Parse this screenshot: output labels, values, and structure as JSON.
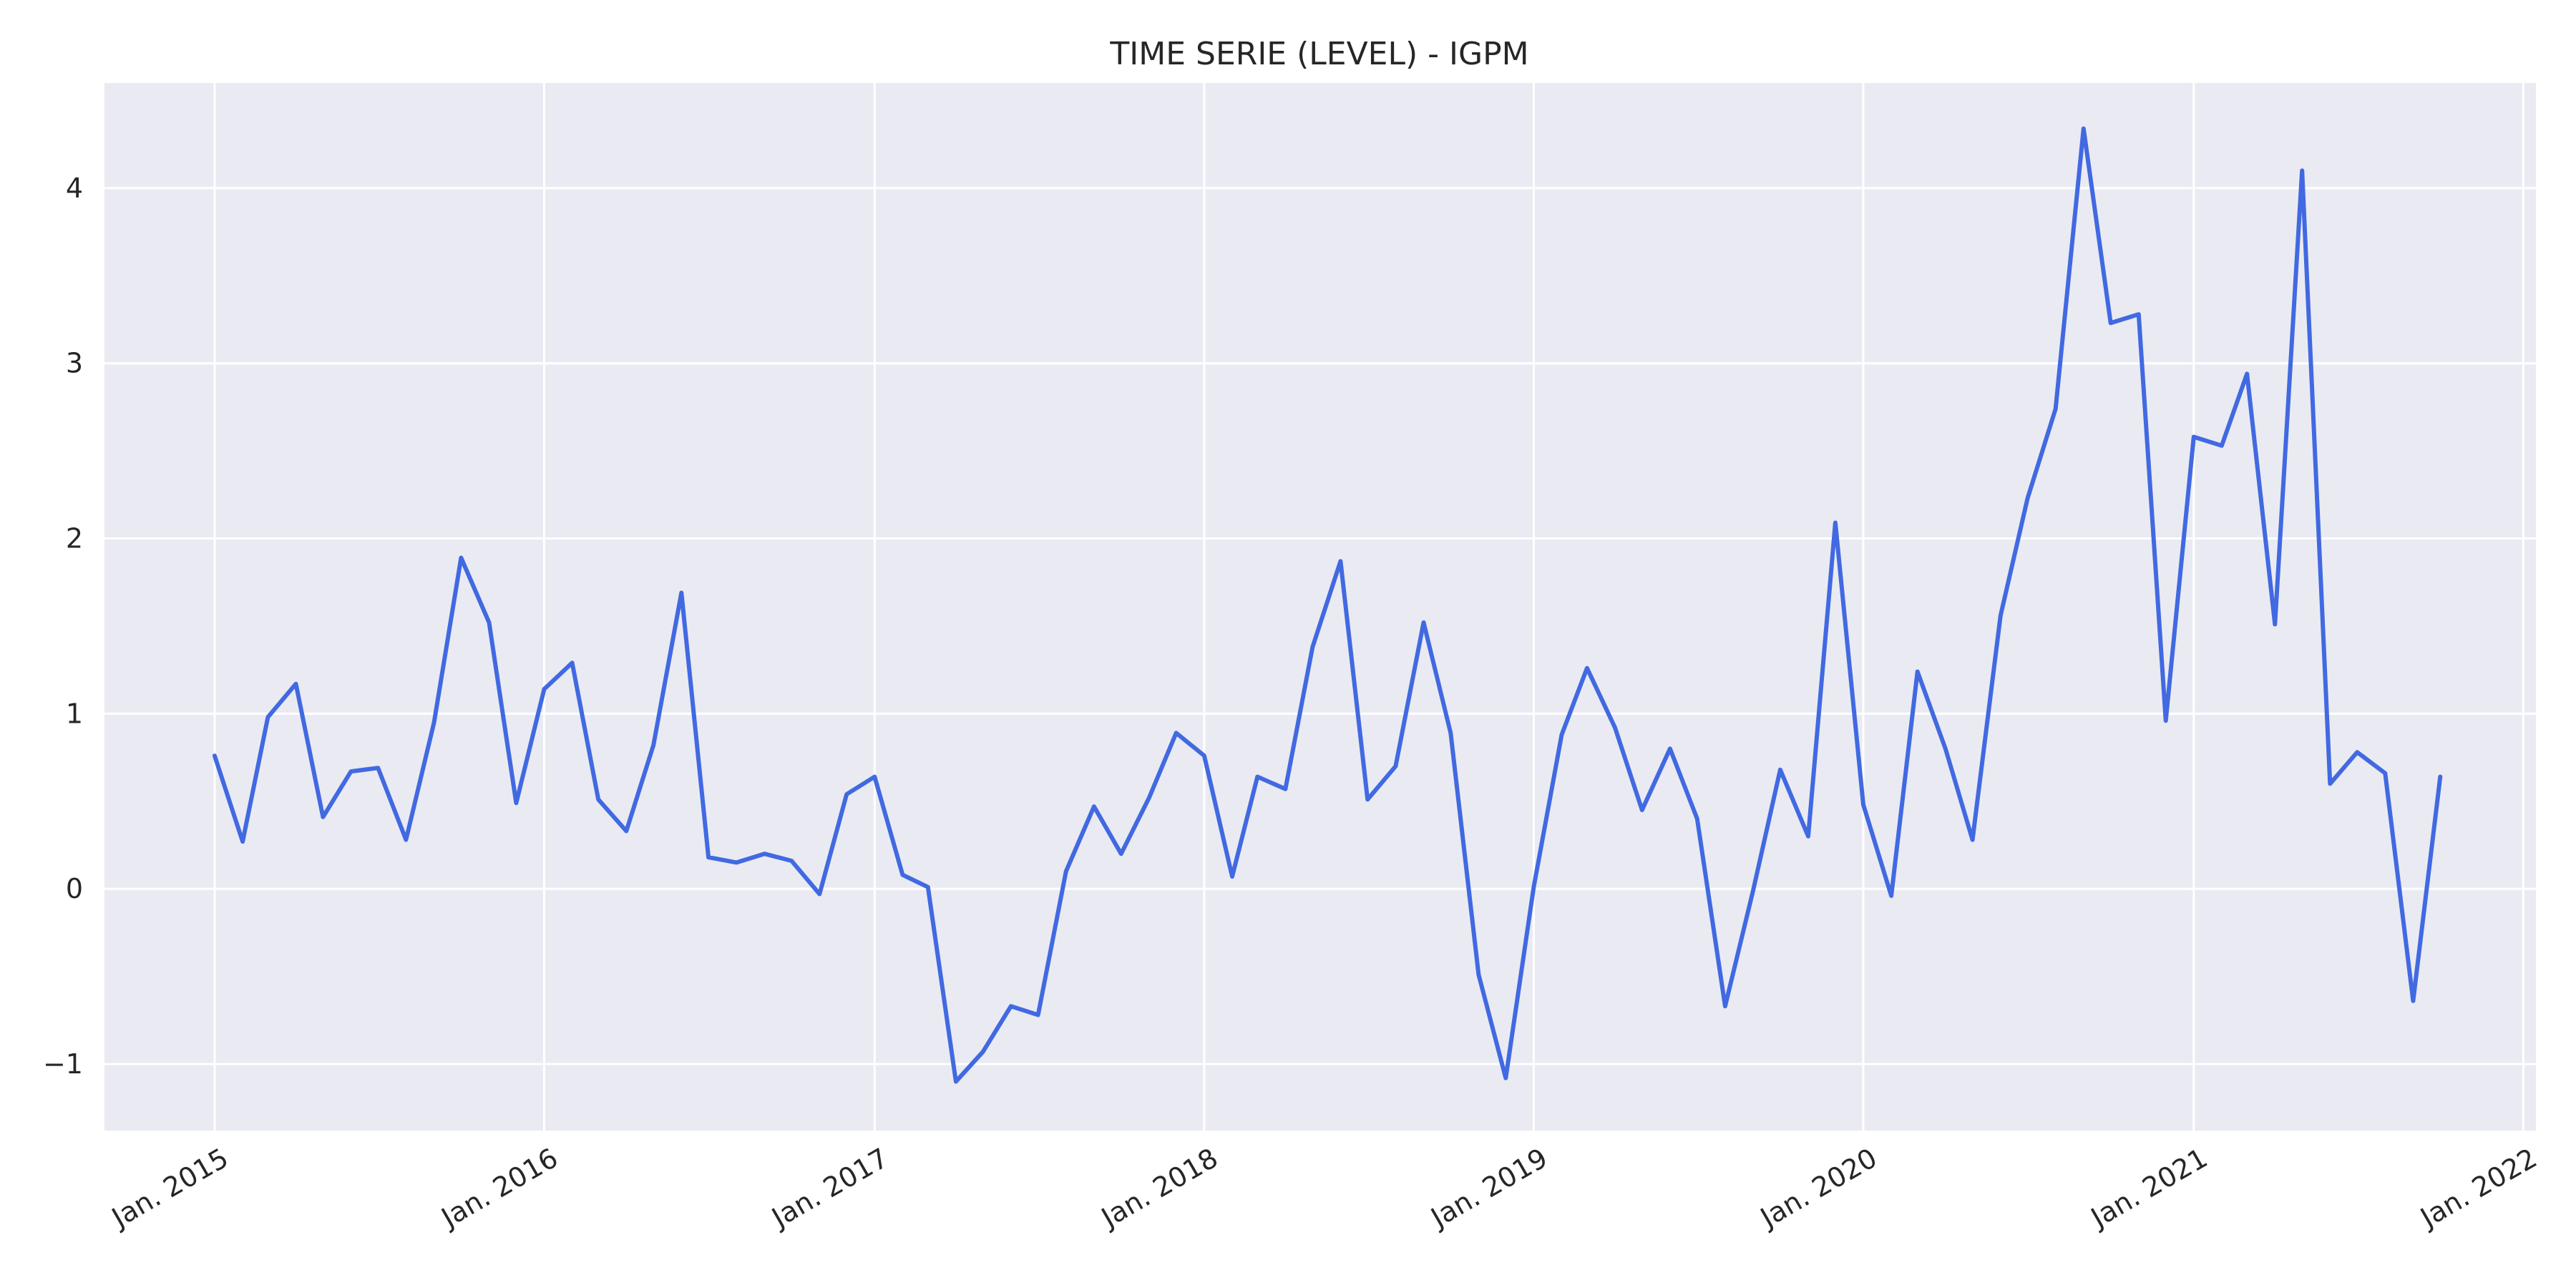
{
  "chart_data": {
    "type": "line",
    "title": "TIME SERIE (LEVEL) - IGPM",
    "xlabel": "",
    "ylabel": "",
    "ylim": [
      -1.38,
      4.6
    ],
    "xlim": [
      "2014-09-01",
      "2022-01-15"
    ],
    "grid": true,
    "legend": "none",
    "background_color": "#eaeaf2",
    "grid_color": "#ffffff",
    "x_ticks": [
      {
        "date": "2015-01-01",
        "label": "Jan. 2015"
      },
      {
        "date": "2016-01-01",
        "label": "Jan. 2016"
      },
      {
        "date": "2017-01-01",
        "label": "Jan. 2017"
      },
      {
        "date": "2018-01-01",
        "label": "Jan. 2018"
      },
      {
        "date": "2019-01-01",
        "label": "Jan. 2019"
      },
      {
        "date": "2020-01-01",
        "label": "Jan. 2020"
      },
      {
        "date": "2021-01-01",
        "label": "Jan. 2021"
      },
      {
        "date": "2022-01-01",
        "label": "Jan. 2022"
      }
    ],
    "y_ticks": [
      {
        "value": -1,
        "label": "−1"
      },
      {
        "value": 0,
        "label": "0"
      },
      {
        "value": 1,
        "label": "1"
      },
      {
        "value": 2,
        "label": "2"
      },
      {
        "value": 3,
        "label": "3"
      },
      {
        "value": 4,
        "label": "4"
      }
    ],
    "series": [
      {
        "color": "#4169e1",
        "x": [
          "2015-01",
          "2015-02",
          "2015-03",
          "2015-04",
          "2015-05",
          "2015-06",
          "2015-07",
          "2015-08",
          "2015-09",
          "2015-10",
          "2015-11",
          "2015-12",
          "2016-01",
          "2016-02",
          "2016-03",
          "2016-04",
          "2016-05",
          "2016-06",
          "2016-07",
          "2016-08",
          "2016-09",
          "2016-10",
          "2016-11",
          "2016-12",
          "2017-01",
          "2017-02",
          "2017-03",
          "2017-04",
          "2017-05",
          "2017-06",
          "2017-07",
          "2017-08",
          "2017-09",
          "2017-10",
          "2017-11",
          "2017-12",
          "2018-01",
          "2018-02",
          "2018-03",
          "2018-04",
          "2018-05",
          "2018-06",
          "2018-07",
          "2018-08",
          "2018-09",
          "2018-10",
          "2018-11",
          "2018-12",
          "2019-01",
          "2019-02",
          "2019-03",
          "2019-04",
          "2019-05",
          "2019-06",
          "2019-07",
          "2019-08",
          "2019-09",
          "2019-10",
          "2019-11",
          "2019-12",
          "2020-01",
          "2020-02",
          "2020-03",
          "2020-04",
          "2020-05",
          "2020-06",
          "2020-07",
          "2020-08",
          "2020-09",
          "2020-10",
          "2020-11",
          "2020-12",
          "2021-01",
          "2021-02",
          "2021-03",
          "2021-04",
          "2021-05",
          "2021-06",
          "2021-07",
          "2021-08",
          "2021-09",
          "2021-10"
        ],
        "y": [
          0.76,
          0.27,
          0.98,
          1.17,
          0.41,
          0.67,
          0.69,
          0.28,
          0.95,
          1.89,
          1.52,
          0.49,
          1.14,
          1.29,
          0.51,
          0.33,
          0.82,
          1.69,
          0.18,
          0.15,
          0.2,
          0.16,
          -0.03,
          0.54,
          0.64,
          0.08,
          0.01,
          -1.1,
          -0.93,
          -0.67,
          -0.72,
          0.1,
          0.47,
          0.2,
          0.52,
          0.89,
          0.76,
          0.07,
          0.64,
          0.57,
          1.38,
          1.87,
          0.51,
          0.7,
          1.52,
          0.89,
          -0.49,
          -1.08,
          0.01,
          0.88,
          1.26,
          0.92,
          0.45,
          0.8,
          0.4,
          -0.67,
          -0.01,
          0.68,
          0.3,
          2.09,
          0.48,
          -0.04,
          1.24,
          0.8,
          0.28,
          1.56,
          2.23,
          2.74,
          4.34,
          3.23,
          3.28,
          0.96,
          2.58,
          2.53,
          2.94,
          1.51,
          4.1,
          0.6,
          0.78,
          0.66,
          -0.64,
          0.64
        ]
      }
    ]
  }
}
